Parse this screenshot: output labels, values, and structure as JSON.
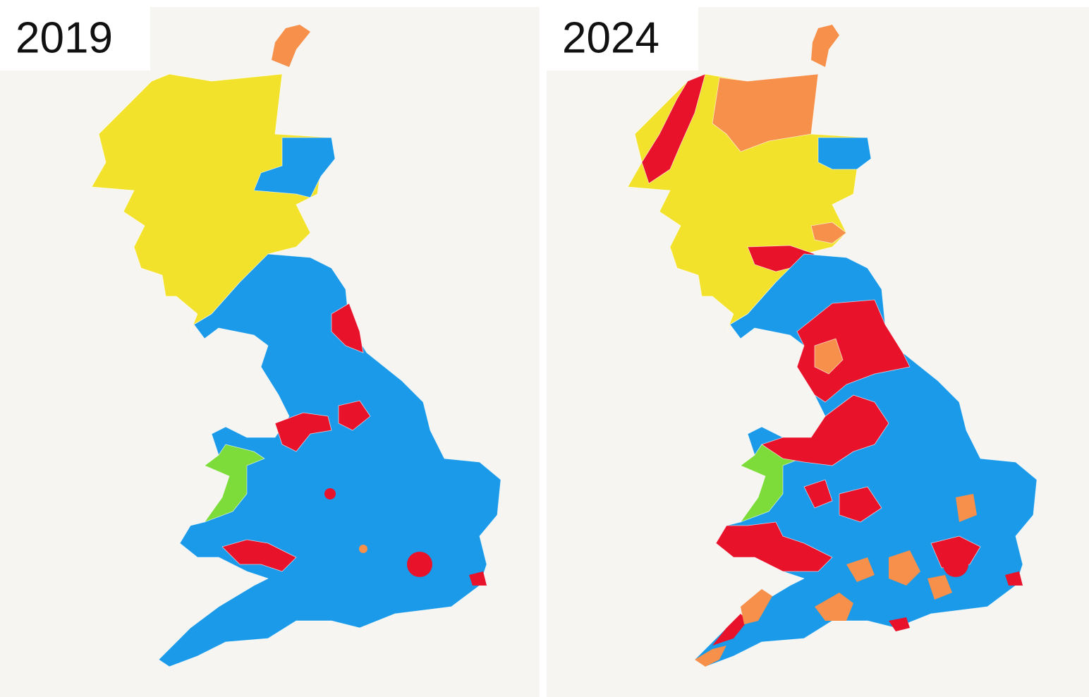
{
  "panels": [
    {
      "label": "2019"
    },
    {
      "label": "2024"
    }
  ]
}
